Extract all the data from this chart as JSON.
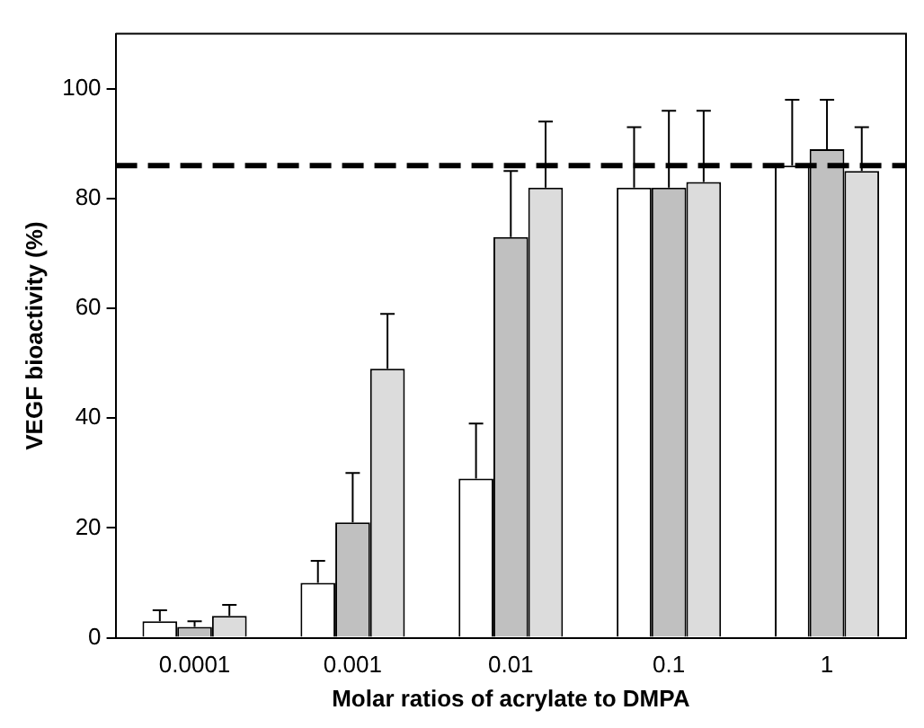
{
  "chart_data": {
    "type": "bar",
    "xlabel": "Molar ratios of acrylate to DMPA",
    "ylabel": "VEGF bioactivity (%)",
    "categories": [
      "0.0001",
      "0.001",
      "0.01",
      "0.1",
      "1"
    ],
    "series": [
      {
        "color": "#ffffff",
        "values": [
          3,
          10,
          29,
          82,
          86
        ],
        "errors": [
          [
            3,
            5
          ],
          [
            10,
            14
          ],
          [
            29,
            39
          ],
          [
            82,
            93
          ],
          [
            86,
            98
          ]
        ]
      },
      {
        "color": "#c0c0c0",
        "values": [
          2,
          21,
          73,
          82,
          89
        ],
        "errors": [
          [
            2,
            3
          ],
          [
            21,
            30
          ],
          [
            73,
            85
          ],
          [
            82,
            96
          ],
          [
            89,
            98
          ]
        ]
      },
      {
        "color": "#dcdcdc",
        "values": [
          4,
          49,
          82,
          83,
          85
        ],
        "errors": [
          [
            4,
            6
          ],
          [
            49,
            59
          ],
          [
            82,
            94
          ],
          [
            83,
            96
          ],
          [
            85,
            93
          ]
        ]
      }
    ],
    "ylim": [
      0,
      110
    ],
    "yticks": [
      0,
      20,
      40,
      60,
      80,
      100
    ],
    "grid": false,
    "legend": false,
    "ref_lines": [
      {
        "axis": "y",
        "value": 86,
        "color": "#000000",
        "line_style": "dashed"
      }
    ]
  }
}
